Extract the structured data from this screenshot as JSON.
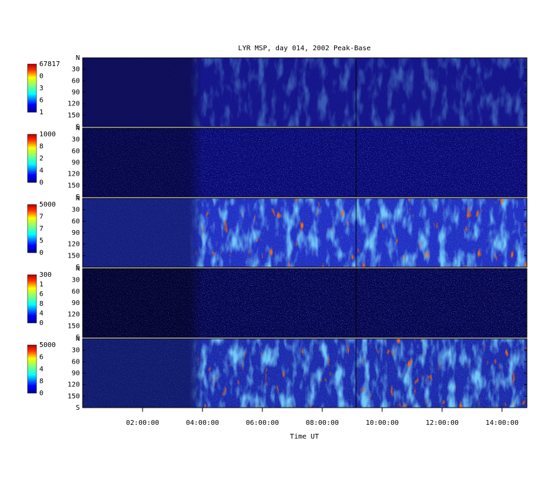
{
  "chart_data": {
    "type": "heatmap",
    "title": "LYR MSP, day 014, 2002 Peak-Base",
    "xlabel": "Time UT",
    "xlim": [
      0,
      14.83
    ],
    "xticks": [
      {
        "value": 2,
        "label": "02:00:00"
      },
      {
        "value": 4,
        "label": "04:00:00"
      },
      {
        "value": 6,
        "label": "06:00:00"
      },
      {
        "value": 8,
        "label": "08:00:00"
      },
      {
        "value": 10,
        "label": "10:00:00"
      },
      {
        "value": 12,
        "label": "12:00:00"
      },
      {
        "value": 14,
        "label": "14:00:00"
      }
    ],
    "ylim": [
      0,
      180
    ],
    "yticks": [
      {
        "value": 0,
        "label": "N"
      },
      30,
      60,
      90,
      120,
      150,
      {
        "value": 180,
        "label": "S"
      }
    ],
    "panels": [
      {
        "colorbar_labels": [
          "67817",
          "0",
          "3",
          "6",
          "1"
        ]
      },
      {
        "colorbar_labels": [
          "1000",
          "8",
          "2",
          "4",
          "0"
        ]
      },
      {
        "colorbar_labels": [
          "5000",
          "7",
          "7",
          "5",
          "0"
        ]
      },
      {
        "colorbar_labels": [
          "300",
          "1",
          "6",
          "8",
          "4",
          "0"
        ]
      },
      {
        "colorbar_labels": [
          "5000",
          "6",
          "4",
          "8",
          "0"
        ]
      }
    ]
  }
}
